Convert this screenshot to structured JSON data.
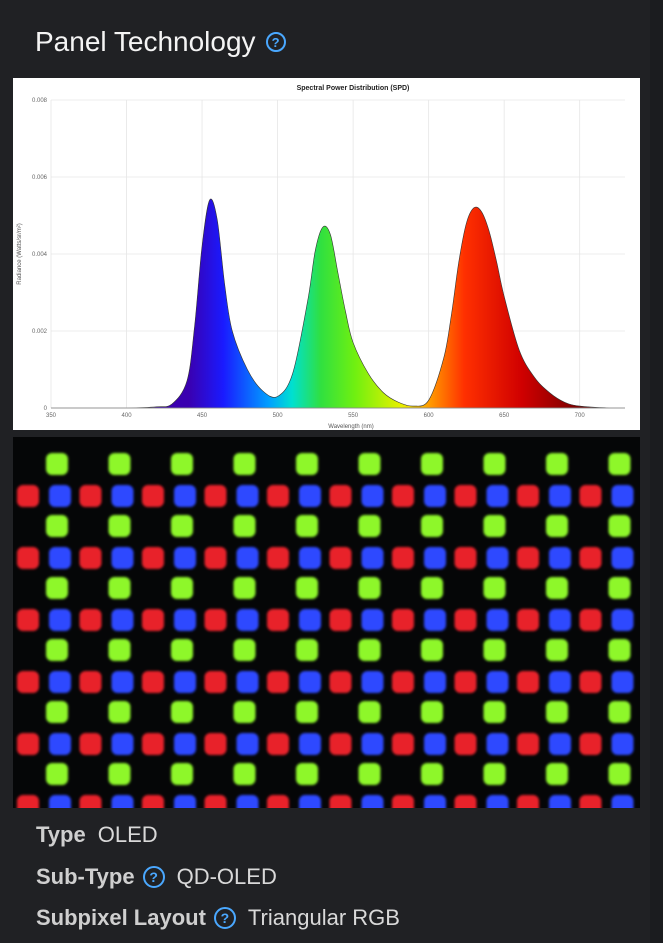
{
  "section": {
    "title": "Panel Technology",
    "help_icon": "question-circle-icon"
  },
  "chart_data": {
    "type": "area",
    "title": "Spectral Power Distribution (SPD)",
    "xlabel": "Wavelength (nm)",
    "ylabel": "Radiance (Watts/sr/m²)",
    "xlim": [
      350,
      730
    ],
    "ylim": [
      0,
      0.008
    ],
    "x_ticks": [
      "350",
      "400",
      "450",
      "500",
      "550",
      "600",
      "650",
      "700",
      "750"
    ],
    "y_ticks": [
      "0",
      "0.002",
      "0.004",
      "0.006",
      "0.008"
    ],
    "grid": true,
    "series": [
      {
        "x": [
          350,
          400,
          420,
          430,
          440,
          445,
          450,
          455,
          460,
          465,
          470,
          480,
          490,
          500,
          510,
          520,
          525,
          530,
          535,
          540,
          545,
          550,
          560,
          570,
          580,
          590,
          600,
          610,
          615,
          620,
          625,
          630,
          635,
          640,
          645,
          650,
          660,
          670,
          680,
          690,
          700,
          720,
          730
        ],
        "y": [
          0,
          0,
          3e-05,
          0.0001,
          0.0007,
          0.0021,
          0.0042,
          0.0054,
          0.0049,
          0.0032,
          0.002,
          0.001,
          0.00045,
          0.0003,
          0.0009,
          0.0028,
          0.0041,
          0.0047,
          0.0045,
          0.0035,
          0.0025,
          0.0017,
          0.0009,
          0.0004,
          0.00015,
          5e-05,
          0.0002,
          0.0013,
          0.0024,
          0.0038,
          0.0048,
          0.0052,
          0.0051,
          0.0046,
          0.0038,
          0.0029,
          0.0015,
          0.0008,
          0.0004,
          0.00015,
          5e-05,
          0,
          0
        ]
      }
    ]
  },
  "pixels_image": {
    "rows": 12,
    "cols": 10,
    "colors": {
      "red": "#e8232c",
      "green": "#8ef72a",
      "blue": "#2e49ff"
    }
  },
  "specs": [
    {
      "label": "Type",
      "value": "OLED",
      "has_help": false
    },
    {
      "label": "Sub-Type",
      "value": "QD-OLED",
      "has_help": true
    },
    {
      "label": "Subpixel Layout",
      "value": "Triangular RGB",
      "has_help": true
    }
  ]
}
